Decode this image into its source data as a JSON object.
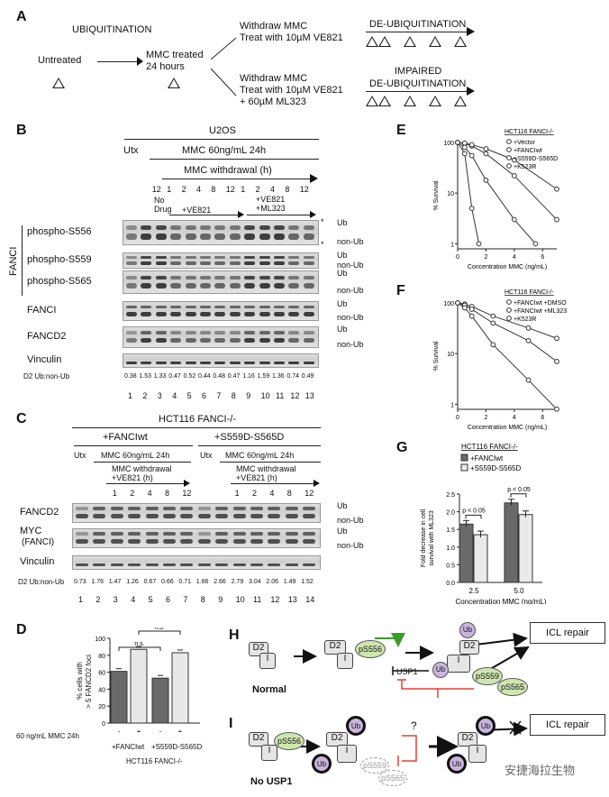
{
  "panelA": {
    "label": "A",
    "ubiquitination": "UBIQUITINATION",
    "untreated": "Untreated",
    "mmc_treated_1": "MMC treated",
    "mmc_treated_2": "24 hours",
    "withdraw1_1": "Withdraw MMC",
    "withdraw1_2": "Treat with 10µM VE821",
    "deubiq": "DE-UBIQUITINATION",
    "withdraw2_1": "Withdraw MMC",
    "withdraw2_2": "Treat with 10µM VE821",
    "withdraw2_3": "+ 60µM ML323",
    "impaired_1": "IMPAIRED",
    "impaired_2": "DE-UBIQUITINATION"
  },
  "panelB": {
    "label": "B",
    "cell": "U2OS",
    "utx": "Utx",
    "mmc": "MMC 60ng/mL 24h",
    "withdrawal": "MMC withdrawal (h)",
    "hours": [
      "12",
      "1",
      "2",
      "4",
      "8",
      "12",
      "1",
      "2",
      "4",
      "8",
      "12"
    ],
    "no_drug_1": "No",
    "no_drug_2": "Drug",
    "ve821": "+VE821",
    "ml323_1": "+VE821",
    "ml323_2": "+ML323",
    "fanci_side": "FANCI",
    "rows": [
      {
        "name": "phospho-S556",
        "right": [
          "Ub",
          "non-Ub"
        ],
        "star": "*"
      },
      {
        "name": "phospho-S559",
        "right": [
          "Ub",
          "non-Ub"
        ]
      },
      {
        "name": "phospho-S565",
        "right": [
          "Ub",
          "non-Ub"
        ]
      },
      {
        "name": "FANCI",
        "right": [
          "Ub",
          "non-Ub"
        ]
      },
      {
        "name": "FANCD2",
        "right": [
          "Ub",
          "non-Ub"
        ]
      },
      {
        "name": "Vinculin",
        "right": []
      }
    ],
    "ratio_label": "D2 Ub:non-Ub",
    "ratios": [
      "0.38",
      "1.53",
      "1.33",
      "0.47",
      "0.52",
      "0.44",
      "0.48",
      "0.47",
      "1.16",
      "1.59",
      "1.36",
      "0.74",
      "0.49"
    ],
    "lanes": [
      "1",
      "2",
      "3",
      "4",
      "5",
      "6",
      "7",
      "8",
      "9",
      "10",
      "11",
      "12",
      "13"
    ]
  },
  "panelC": {
    "label": "C",
    "cell": "HCT116 FANCI-/-",
    "wt": "+FANCIwt",
    "mut": "+S559D-S565D",
    "utx": "Utx",
    "mmc": "MMC 60ng/mL 24h",
    "withdrawal_1": "MMC withdrawal",
    "withdrawal_2": "+VE821 (h)",
    "hours": [
      "1",
      "2",
      "4",
      "8",
      "12"
    ],
    "rows": [
      {
        "name": "FANCD2",
        "right": [
          "Ub",
          "non-Ub"
        ]
      },
      {
        "name": "MYC",
        "name2": "(FANCI)",
        "right": [
          "Ub",
          "non-Ub"
        ]
      },
      {
        "name": "Vinculin",
        "right": []
      }
    ],
    "ratio_label": "D2 Ub:non-Ub",
    "ratios": [
      "0.73",
      "1.76",
      "1.47",
      "1.26",
      "0.67",
      "0.66",
      "0.71",
      "1.66",
      "2.66",
      "2.79",
      "3.04",
      "2.06",
      "1.49",
      "1.52"
    ],
    "lanes": [
      "1",
      "2",
      "3",
      "4",
      "5",
      "6",
      "7",
      "8",
      "9",
      "10",
      "11",
      "12",
      "13",
      "14"
    ]
  },
  "panelD": {
    "label": "D",
    "ylabel_1": "% cells with",
    "ylabel_2": "> 5 FANCD2 foci",
    "yticks": [
      "0",
      "20",
      "40",
      "60",
      "80",
      "100"
    ],
    "ns": "n.s.",
    "mmc_label": "60 ng/mL MMC 24h",
    "signs": [
      "-",
      "+",
      "-",
      "+"
    ],
    "groups": [
      "+FANCIwt",
      "+S559D-S565D"
    ],
    "xlabel": "HCT116 FANCI-/-"
  },
  "panelE": {
    "label": "E",
    "legend_title": "HCT116 FANCI-/-",
    "legend": [
      "+Vector",
      "+FANCIwt",
      "+S559D-S565D",
      "+K523R"
    ],
    "ylabel": "% Survival",
    "xlabel": "Concentration MMC (ng/mL)",
    "yticks": [
      "100",
      "10",
      "1"
    ],
    "xticks": [
      "0",
      "2",
      "4",
      "6"
    ]
  },
  "panelF": {
    "label": "F",
    "legend_title": "HCT116 FANCI-/-",
    "legend": [
      "+FANCIwt +DMSO",
      "+FANCIwt +ML323",
      "+K523R"
    ],
    "ylabel": "% Survival",
    "xlabel": "Concentration MMC (ng/mL)",
    "yticks": [
      "100",
      "10",
      "1"
    ],
    "xticks": [
      "0",
      "2",
      "4",
      "6"
    ]
  },
  "panelG": {
    "label": "G",
    "legend_title": "HCT116 FANCI-/-",
    "legend": [
      "+FANCIwt",
      "+S559D-S565D"
    ],
    "ylabel_1": "Fold decrease in cell",
    "ylabel_2": "survival with ML323",
    "yticks": [
      "0.0",
      "0.5",
      "1.0",
      "1.5",
      "2.0",
      "2.5"
    ],
    "pval": "p < 0.05",
    "xticks": [
      "2.5",
      "5.0"
    ],
    "xlabel": "Concentration MMC (ng/mL)"
  },
  "panelH": {
    "label": "H",
    "d2": "D2",
    "i": "I",
    "ps556": "pS556",
    "ps559": "pS559",
    "ps565": "pS565",
    "ub": "Ub",
    "usp1": "USP1",
    "icl": "ICL repair",
    "normal": "Normal"
  },
  "panelI": {
    "label": "I",
    "q": "?",
    "no_usp1": "No USP1"
  },
  "watermark": "安捷海拉生物",
  "chart_data": [
    {
      "type": "bar",
      "title": "",
      "ylabel": "% cells with > 5 FANCD2 foci",
      "categories": [
        "+FANCIwt -",
        "+FANCIwt +",
        "+S559D-S565D -",
        "+S559D-S565D +"
      ],
      "values": [
        61,
        87,
        53,
        83
      ],
      "ylim": [
        0,
        100
      ]
    },
    {
      "type": "line",
      "title": "",
      "xlabel": "Concentration MMC (ng/mL)",
      "ylabel": "% Survival",
      "scale": "log",
      "series": [
        {
          "name": "+Vector",
          "x": [
            0,
            0.5,
            1,
            1.5
          ],
          "y": [
            100,
            60,
            5,
            1
          ]
        },
        {
          "name": "+FANCIwt",
          "x": [
            0,
            0.5,
            1,
            2,
            4,
            7
          ],
          "y": [
            100,
            95,
            85,
            60,
            22,
            3
          ]
        },
        {
          "name": "+S559D-S565D",
          "x": [
            0,
            0.5,
            1,
            2,
            4,
            7
          ],
          "y": [
            100,
            97,
            90,
            75,
            45,
            12
          ]
        },
        {
          "name": "+K523R",
          "x": [
            0,
            0.5,
            1,
            2,
            4,
            5.5
          ],
          "y": [
            100,
            80,
            55,
            18,
            3,
            1
          ]
        }
      ]
    },
    {
      "type": "line",
      "title": "",
      "xlabel": "Concentration MMC (ng/mL)",
      "ylabel": "% Survival",
      "scale": "log",
      "series": [
        {
          "name": "+FANCIwt +DMSO",
          "x": [
            0,
            0.5,
            1,
            2.5,
            5,
            7
          ],
          "y": [
            100,
            95,
            85,
            55,
            32,
            20
          ]
        },
        {
          "name": "+FANCIwt +ML323",
          "x": [
            0,
            0.5,
            1,
            2.5,
            5,
            7
          ],
          "y": [
            100,
            90,
            75,
            40,
            18,
            7
          ]
        },
        {
          "name": "+K523R",
          "x": [
            0,
            0.5,
            1,
            2.5,
            5,
            7
          ],
          "y": [
            100,
            80,
            55,
            15,
            3,
            0.8
          ]
        }
      ]
    },
    {
      "type": "bar",
      "title": "",
      "xlabel": "Concentration MMC (ng/mL)",
      "ylabel": "Fold decrease in cell survival with ML323",
      "categories": [
        "2.5",
        "5.0"
      ],
      "series": [
        {
          "name": "+FANCIwt",
          "values": [
            1.65,
            2.25
          ]
        },
        {
          "name": "+S559D-S565D",
          "values": [
            1.35,
            1.92
          ]
        }
      ],
      "ylim": [
        0,
        2.5
      ]
    }
  ]
}
